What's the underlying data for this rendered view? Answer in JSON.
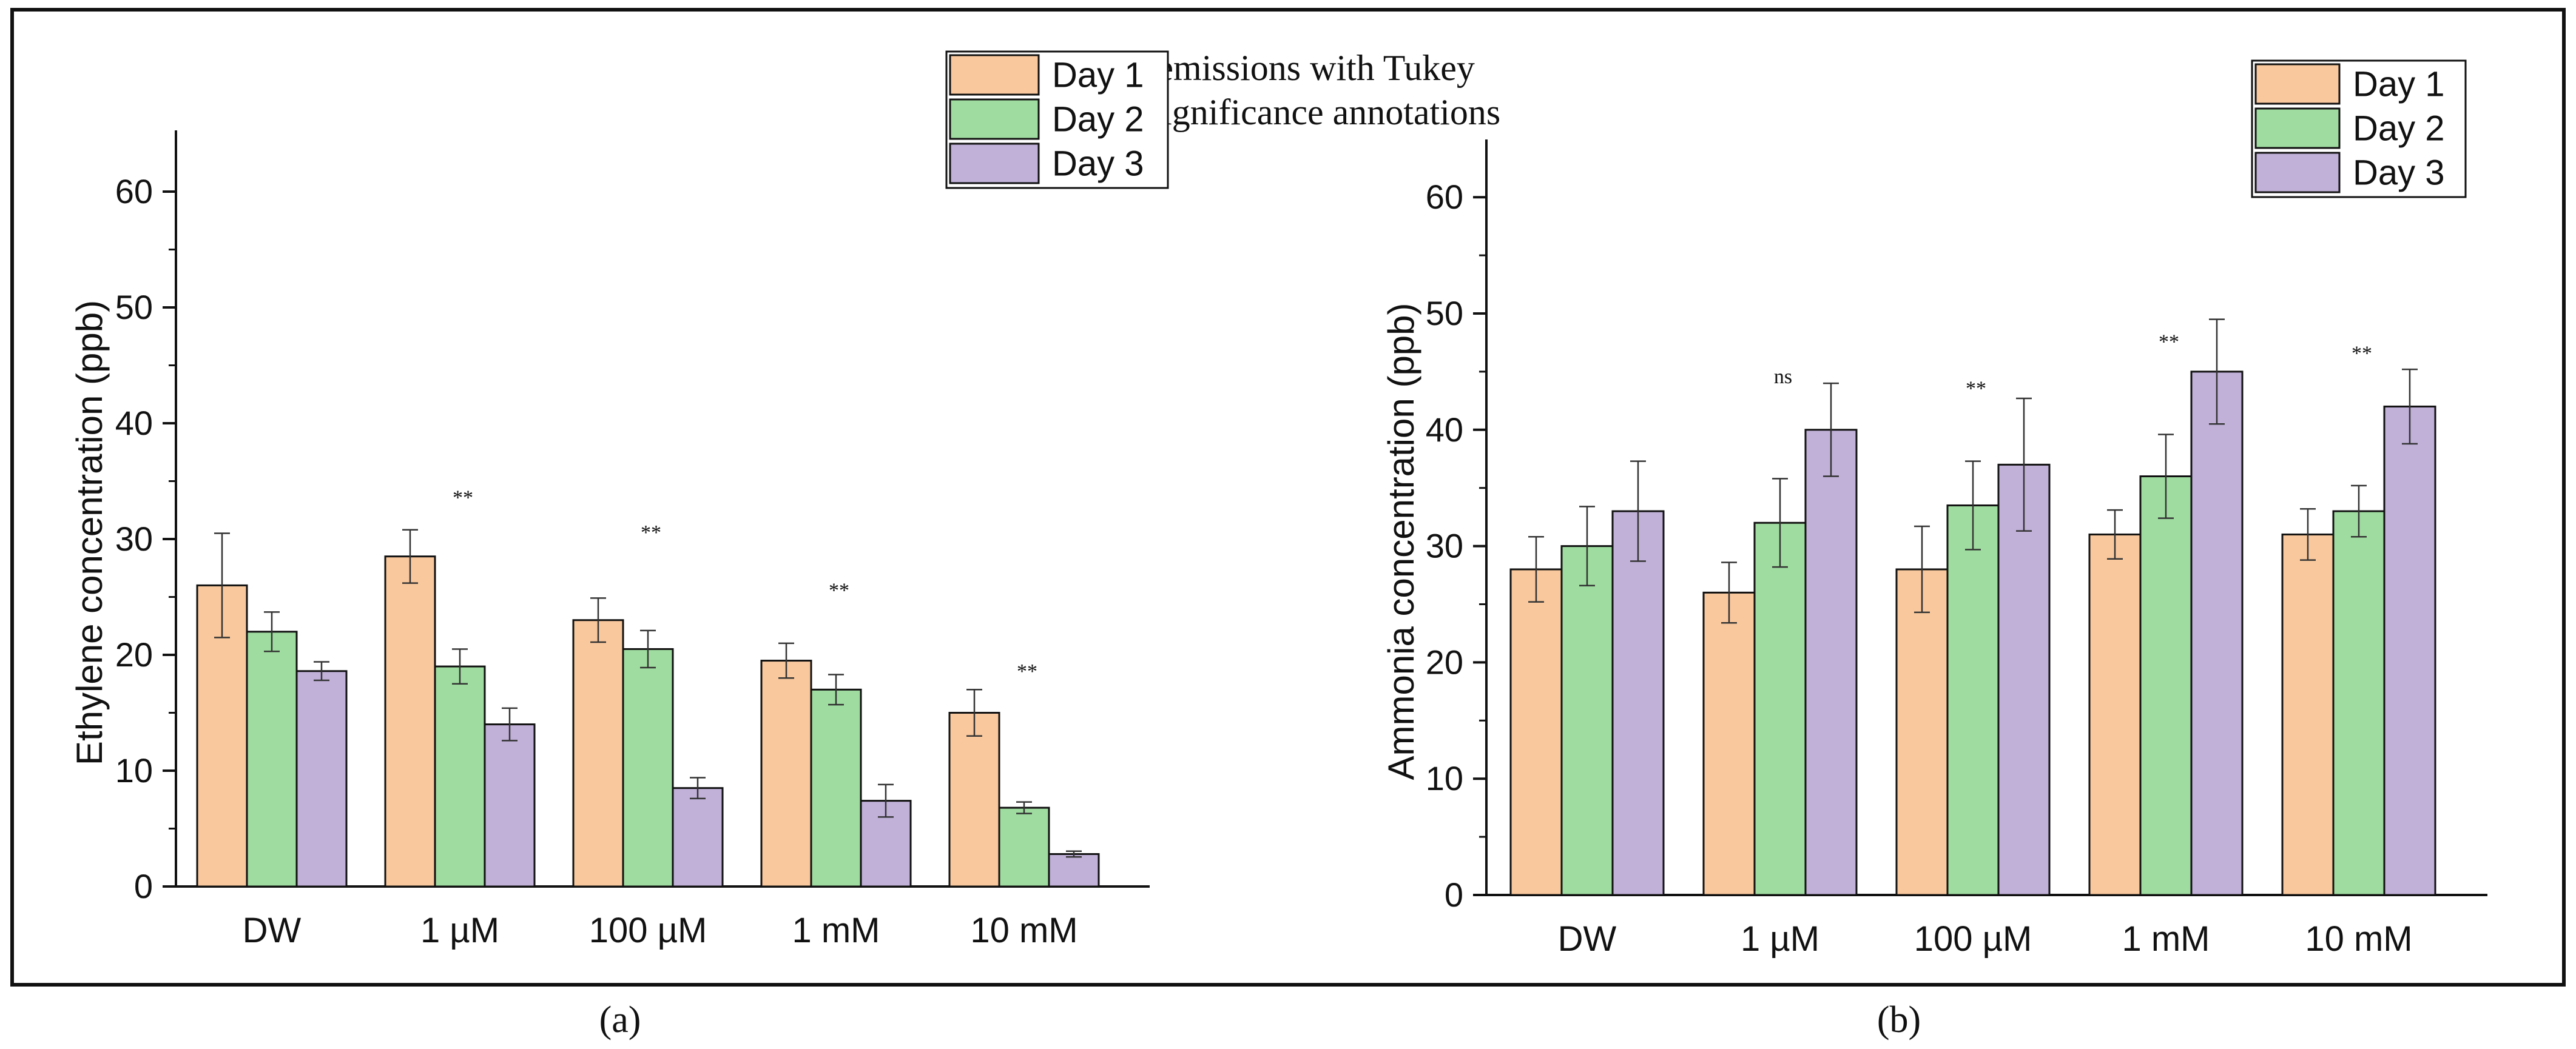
{
  "figure_title_lines": [
    "Gas emissions with Tukey",
    "HSD significance annotations"
  ],
  "panel_labels": [
    "(a)",
    "(b)"
  ],
  "colors": {
    "series": [
      "#f9c89d",
      "#9fdca0",
      "#c1b1d9"
    ],
    "frame": "#111111"
  },
  "chart_data": [
    {
      "type": "bar",
      "panel": "a",
      "categories": [
        "DW",
        "1 µM",
        "100 µM",
        "1 mM",
        "10 mM"
      ],
      "series": [
        {
          "name": "Day 1",
          "values": [
            26,
            28.5,
            23,
            19.5,
            15
          ],
          "errors": [
            4.5,
            2.3,
            1.9,
            1.5,
            2.0
          ]
        },
        {
          "name": "Day 2",
          "values": [
            22,
            19,
            20.5,
            17,
            6.8
          ],
          "errors": [
            1.7,
            1.5,
            1.6,
            1.3,
            0.5
          ]
        },
        {
          "name": "Day 3",
          "values": [
            18.6,
            14,
            8.5,
            7.4,
            2.8
          ],
          "errors": [
            0.8,
            1.4,
            0.9,
            1.4,
            0.25
          ]
        }
      ],
      "annotations": [
        {
          "category": "1 µM",
          "text": "**",
          "y": 33
        },
        {
          "category": "100 µM",
          "text": "**",
          "y": 30
        },
        {
          "category": "1 mM",
          "text": "**",
          "y": 25
        },
        {
          "category": "10 mM",
          "text": "**",
          "y": 18
        }
      ],
      "ylabel": "Ethylene concentration (ppb)",
      "xlabel": "",
      "ylim": [
        0,
        65
      ],
      "yticks": [
        0,
        10,
        20,
        30,
        40,
        50,
        60
      ],
      "legend_position": "top-right"
    },
    {
      "type": "bar",
      "panel": "b",
      "categories": [
        "DW",
        "1 µM",
        "100 µM",
        "1 mM",
        "10 mM"
      ],
      "series": [
        {
          "name": "Day 1",
          "values": [
            28,
            26,
            28,
            31,
            31
          ],
          "errors": [
            2.8,
            2.6,
            3.7,
            2.1,
            2.2
          ]
        },
        {
          "name": "Day 2",
          "values": [
            30,
            32,
            33.5,
            36,
            33
          ],
          "errors": [
            3.4,
            3.8,
            3.8,
            3.6,
            2.2
          ]
        },
        {
          "name": "Day 3",
          "values": [
            33,
            40,
            37,
            45,
            42
          ],
          "errors": [
            4.3,
            4.0,
            5.7,
            4.5,
            3.2
          ]
        }
      ],
      "annotations": [
        {
          "category": "1 µM",
          "text": "ns",
          "y": 44
        },
        {
          "category": "100 µM",
          "text": "**",
          "y": 43
        },
        {
          "category": "1 mM",
          "text": "**",
          "y": 47
        },
        {
          "category": "10 mM",
          "text": "**",
          "y": 46
        }
      ],
      "ylabel": "Ammonia concentration (ppb)",
      "xlabel": "",
      "ylim": [
        0,
        65
      ],
      "yticks": [
        0,
        10,
        20,
        30,
        40,
        50,
        60
      ],
      "legend_position": "top-right"
    }
  ]
}
